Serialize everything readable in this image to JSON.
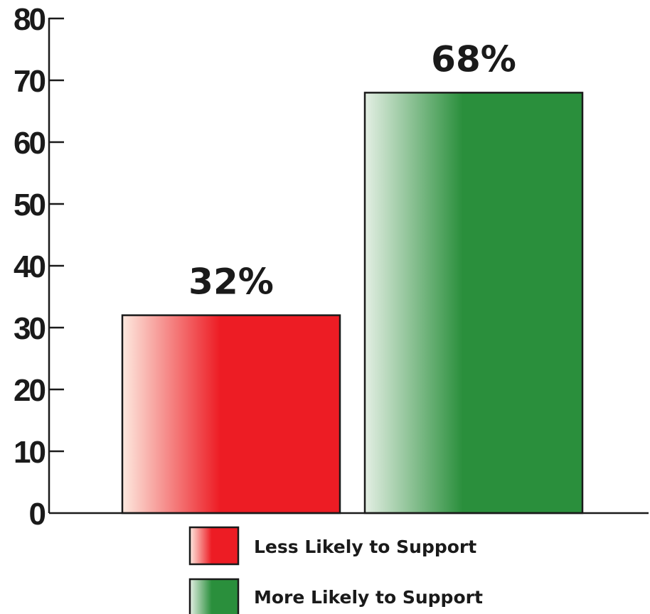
{
  "chart_data": {
    "type": "bar",
    "title": "",
    "xlabel": "",
    "ylabel": "",
    "categories": [
      "Less Likely to Support",
      "More Likely to Support"
    ],
    "values": [
      32,
      68
    ],
    "data_labels": [
      "32%",
      "68%"
    ],
    "ylim": [
      0,
      80
    ],
    "yticks": [
      0,
      10,
      20,
      30,
      40,
      50,
      60,
      70,
      80
    ],
    "grid": false,
    "legend_position": "bottom",
    "colors": [
      "#ed1c24",
      "#2a8f3c"
    ],
    "gradient_start_colors": [
      "#fde9df",
      "#e4efe4"
    ],
    "legend": [
      {
        "label": "Less Likely to Support",
        "color": "#ed1c24"
      },
      {
        "label": "More Likely to Support",
        "color": "#2a8f3c"
      }
    ]
  }
}
